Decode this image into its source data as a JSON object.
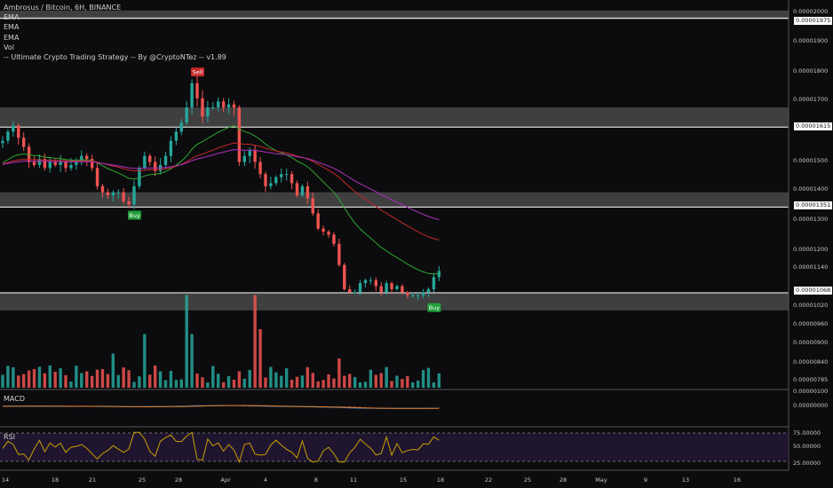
{
  "header": {
    "title": "Ambrosus / Bitcoin, 6H, BINANCE",
    "indicators": [
      "EMA",
      "EMA",
      "EMA",
      "Vol",
      "-- Ultimate Crypto Trading Strategy -- By @CryptoNTez -- v1.89"
    ]
  },
  "panels": {
    "macd_label": "MACD",
    "rsi_label": "RSI"
  },
  "price_boxes": {
    "b1": "0.00001975",
    "b2": "0.00001615",
    "b3": "0.00001351",
    "b4": "0.00001068"
  },
  "colors": {
    "background": "#0c0c0e",
    "up": "#26a69a",
    "down": "#ef5350",
    "ema_short": "#2ea82e",
    "ema_mid": "#c62828",
    "ema_long": "#b030c0",
    "zone": "#6a6a6a",
    "macd": "#2f7ed8",
    "signal": "#e67e22",
    "rsi_line": "#c8a000",
    "rsi_band": "#2a1a3d"
  },
  "chart_data": {
    "type": "candlestick",
    "title": "Ambrosus / Bitcoin, 6H, BINANCE",
    "x_ticks": [
      "14",
      "18",
      "21",
      "25",
      "28",
      "Apr",
      "4",
      "8",
      "11",
      "15",
      "18",
      "22",
      "25",
      "28",
      "May",
      "9",
      "13",
      "16"
    ],
    "y_ticks": [
      "0.00001900",
      "0.00001800",
      "0.00001700",
      "0.00001500",
      "0.00001400",
      "0.00001300",
      "0.00001200",
      "0.00001140",
      "0.00001020",
      "0.00000960",
      "0.00000900",
      "0.00000840",
      "0.00000785"
    ],
    "y_top_partial": "0.00002000",
    "macd_ticks": [
      "0.00000000"
    ],
    "macd_top_partial": "0.00000100",
    "rsi_ticks": [
      "75.00000",
      "50.00000",
      "25.00000"
    ],
    "signals": [
      {
        "label": "Sell",
        "price": 1.8e-05
      },
      {
        "label": "Buy",
        "price": 1.345e-05
      },
      {
        "label": "Buy",
        "price": 1.04e-05
      }
    ],
    "support_resistance_zones": [
      {
        "low": 1.97e-05,
        "high": 2e-05
      },
      {
        "low": 1.615e-05,
        "high": 1.68e-05
      },
      {
        "low": 1.35e-05,
        "high": 1.4e-05
      },
      {
        "low": 1.01e-05,
        "high": 1.068e-05
      }
    ],
    "horizontal_lines": [
      1.975e-05,
      1.615e-05,
      1.351e-05,
      1.068e-05
    ],
    "close_series": [
      1.57e-05,
      1.6e-05,
      1.62e-05,
      1.58e-05,
      1.55e-05,
      1.5e-05,
      1.49e-05,
      1.51e-05,
      1.48e-05,
      1.5e-05,
      1.49e-05,
      1.5e-05,
      1.48e-05,
      1.49e-05,
      1.5e-05,
      1.52e-05,
      1.51e-05,
      1.48e-05,
      1.42e-05,
      1.4e-05,
      1.39e-05,
      1.4e-05,
      1.4e-05,
      1.37e-05,
      1.36e-05,
      1.42e-05,
      1.48e-05,
      1.52e-05,
      1.5e-05,
      1.47e-05,
      1.49e-05,
      1.52e-05,
      1.57e-05,
      1.6e-05,
      1.63e-05,
      1.68e-05,
      1.76e-05,
      1.71e-05,
      1.65e-05,
      1.68e-05,
      1.68e-05,
      1.7e-05,
      1.68e-05,
      1.69e-05,
      1.68e-05,
      1.5e-05,
      1.52e-05,
      1.54e-05,
      1.5e-05,
      1.46e-05,
      1.42e-05,
      1.43e-05,
      1.45e-05,
      1.46e-05,
      1.46e-05,
      1.43e-05,
      1.39e-05,
      1.42e-05,
      1.38e-05,
      1.33e-05,
      1.28e-05,
      1.27e-05,
      1.26e-05,
      1.23e-05,
      1.16e-05,
      1.08e-05,
      1.07e-05,
      1.07e-05,
      1.1e-05,
      1.11e-05,
      1.11e-05,
      1.09e-05,
      1.07e-05,
      1.1e-05,
      1.08e-05,
      1.09e-05,
      1.07e-05,
      1.06e-05,
      1.06e-05,
      1.06e-05,
      1.07e-05,
      1.08e-05,
      1.12e-05,
      1.14e-05
    ]
  }
}
